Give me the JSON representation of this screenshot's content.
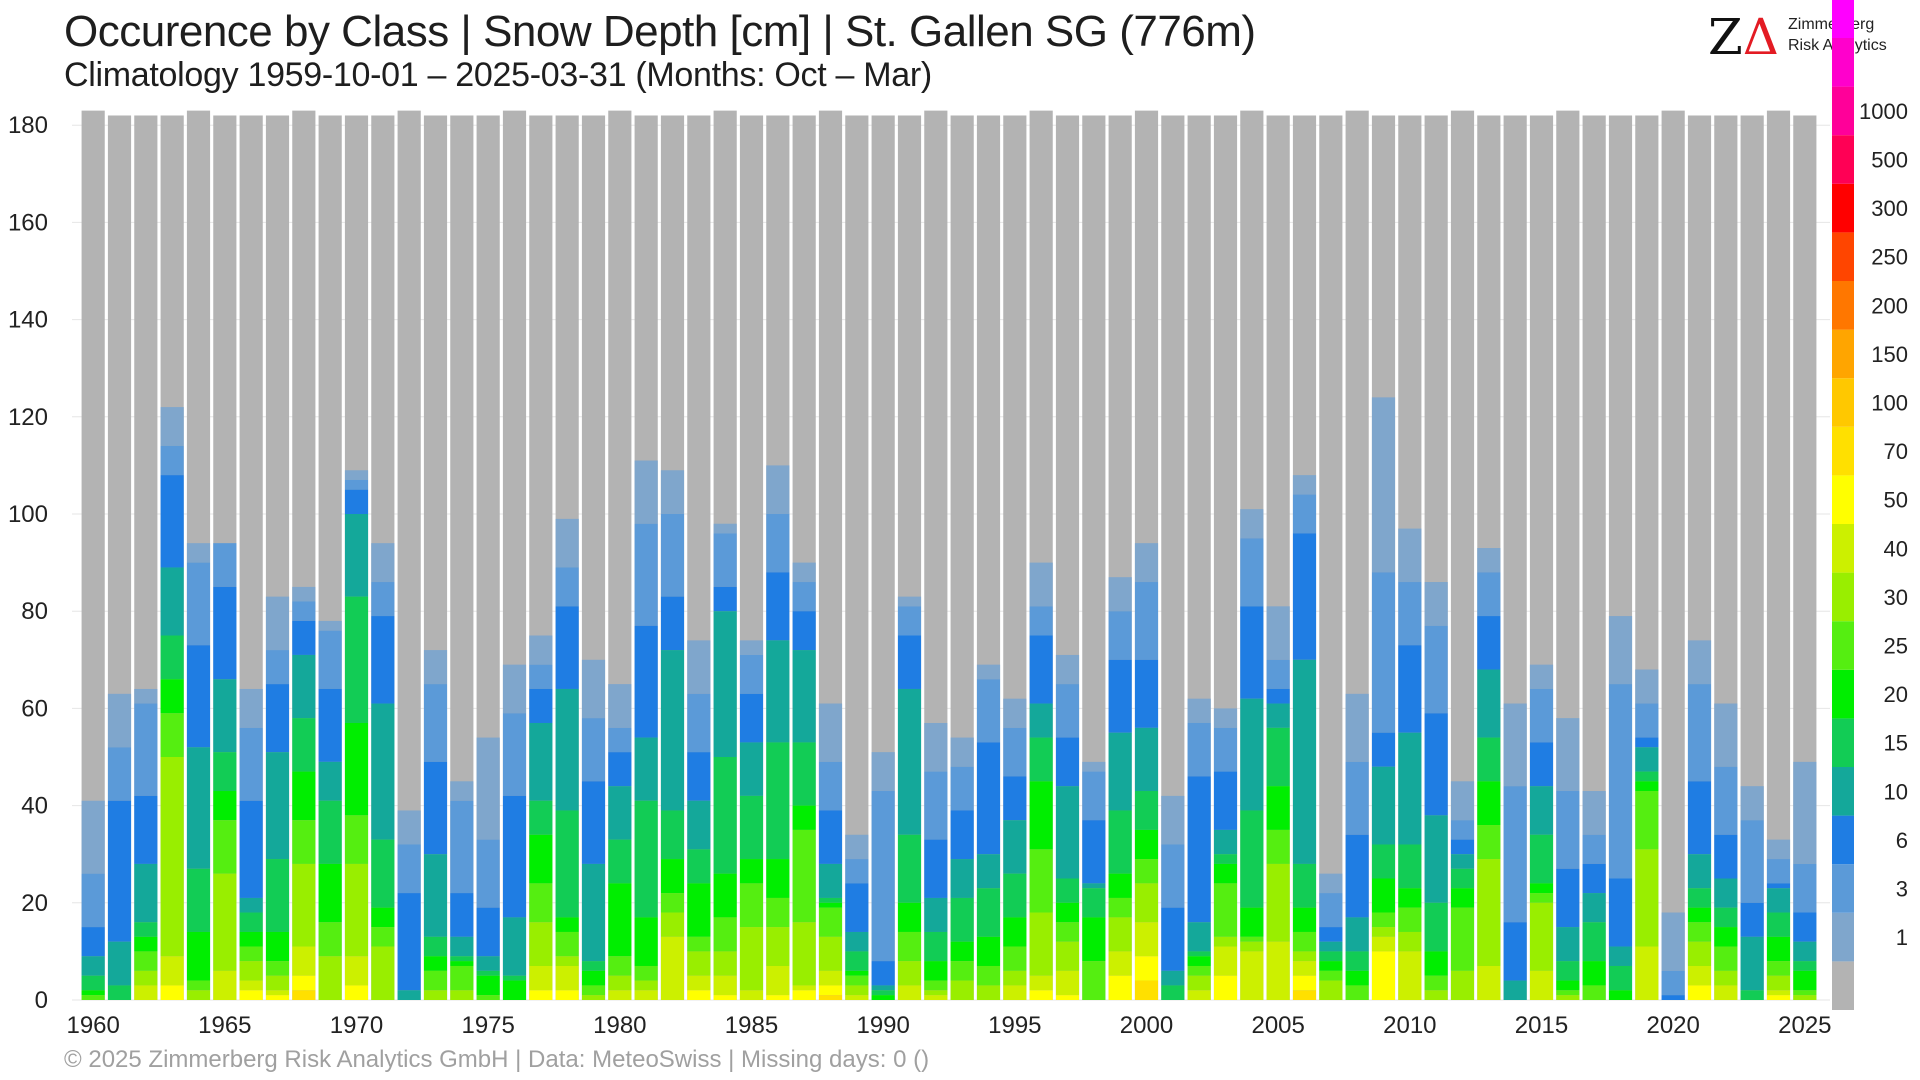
{
  "header": {
    "title": "Occurence by Class | Snow Depth [cm] | St. Gallen  SG (776m)",
    "subtitle": "Climatology 1959-10-01 – 2025-03-31 (Months: Oct – Mar)"
  },
  "logo": {
    "mark": "ZΔ",
    "name": "Zimmerberg",
    "sub": "Risk Analytics"
  },
  "footer": {
    "text": "©  2025 Zimmerberg Risk Analytics GmbH | Data: MeteoSwiss | Missing days: 0 ()"
  },
  "chart_data": {
    "type": "bar",
    "stacked": true,
    "x": [
      1960,
      1961,
      1962,
      1963,
      1964,
      1965,
      1966,
      1967,
      1968,
      1969,
      1970,
      1971,
      1972,
      1973,
      1974,
      1975,
      1976,
      1977,
      1978,
      1979,
      1980,
      1981,
      1982,
      1983,
      1984,
      1985,
      1986,
      1987,
      1988,
      1989,
      1990,
      1991,
      1992,
      1993,
      1994,
      1995,
      1996,
      1997,
      1998,
      1999,
      2000,
      2001,
      2002,
      2003,
      2004,
      2005,
      2006,
      2007,
      2008,
      2009,
      2010,
      2011,
      2012,
      2013,
      2014,
      2015,
      2016,
      2017,
      2018,
      2019,
      2020,
      2021,
      2022,
      2023,
      2024,
      2025
    ],
    "xticks": [
      1960,
      1965,
      1970,
      1975,
      1980,
      1985,
      1990,
      1995,
      2000,
      2005,
      2010,
      2015,
      2020,
      2025
    ],
    "ylim": [
      0,
      183
    ],
    "yticks": [
      0,
      20,
      40,
      60,
      80,
      100,
      120,
      140,
      160,
      180
    ],
    "grid": true,
    "season_days": [
      183,
      182,
      182,
      182,
      183,
      182,
      182,
      182,
      183,
      182,
      182,
      182,
      183,
      182,
      182,
      182,
      183,
      182,
      182,
      182,
      183,
      182,
      182,
      182,
      183,
      182,
      182,
      182,
      183,
      182,
      182,
      182,
      183,
      182,
      182,
      182,
      183,
      182,
      182,
      182,
      183,
      182,
      182,
      182,
      183,
      182,
      182,
      182,
      183,
      182,
      182,
      182,
      183,
      182,
      182,
      182,
      183,
      182,
      182,
      182,
      183,
      182,
      182,
      182,
      183,
      182
    ],
    "classes": [
      {
        "label": "1",
        "color": "#7fa6cc"
      },
      {
        "label": "3",
        "color": "#5b9ad8"
      },
      {
        "label": "6",
        "color": "#1f7de3"
      },
      {
        "label": "10",
        "color": "#14a89a"
      },
      {
        "label": "15",
        "color": "#12cc55"
      },
      {
        "label": "20",
        "color": "#00ee00"
      },
      {
        "label": "25",
        "color": "#55ee11"
      },
      {
        "label": "30",
        "color": "#99ee00"
      },
      {
        "label": "40",
        "color": "#ccf000"
      },
      {
        "label": "50",
        "color": "#ffff00"
      },
      {
        "label": "70",
        "color": "#ffe000"
      },
      {
        "label": "100",
        "color": "#ffc800"
      },
      {
        "label": "150",
        "color": "#ffa500"
      },
      {
        "label": "200",
        "color": "#ff7700"
      },
      {
        "label": "250",
        "color": "#ff4500"
      },
      {
        "label": "300",
        "color": "#ff0000"
      },
      {
        "label": "500",
        "color": "#ff0055"
      },
      {
        "label": "1000",
        "color": "#ff0099"
      },
      {
        "label": "",
        "color": "#ff00cc"
      },
      {
        "label": "",
        "color": "#ff00ff"
      }
    ],
    "no_snow_color": "#b3b3b3",
    "legend_labels": [
      "1",
      "3",
      "6",
      "10",
      "15",
      "20",
      "25",
      "30",
      "40",
      "50",
      "70",
      "100",
      "150",
      "200",
      "250",
      "300",
      "500",
      "1000"
    ],
    "series_cumulative_top": [
      [
        41,
        26,
        15,
        9,
        5,
        2,
        1,
        0
      ],
      [
        63,
        52,
        41,
        12,
        3
      ],
      [
        64,
        61,
        42,
        28,
        16,
        13,
        10,
        6,
        3
      ],
      [
        122,
        114,
        108,
        89,
        75,
        66,
        59,
        50,
        9,
        3
      ],
      [
        94,
        90,
        73,
        52,
        27,
        14,
        4,
        2
      ],
      [
        94,
        94,
        85,
        66,
        51,
        43,
        37,
        26,
        6
      ],
      [
        64,
        56,
        41,
        21,
        18,
        14,
        11,
        8,
        4,
        2
      ],
      [
        83,
        72,
        65,
        51,
        29,
        14,
        8,
        5,
        2,
        1
      ],
      [
        85,
        82,
        78,
        71,
        58,
        47,
        37,
        28,
        11,
        5,
        2
      ],
      [
        78,
        76,
        64,
        49,
        41,
        28,
        16,
        9
      ],
      [
        109,
        107,
        105,
        100,
        83,
        57,
        38,
        28,
        9,
        3
      ],
      [
        94,
        86,
        79,
        61,
        33,
        19,
        15,
        11
      ],
      [
        39,
        32,
        22,
        2
      ],
      [
        72,
        65,
        49,
        30,
        13,
        9,
        6,
        2
      ],
      [
        45,
        41,
        22,
        13,
        9,
        8,
        7,
        2
      ],
      [
        54,
        33,
        19,
        9,
        6,
        5,
        1
      ],
      [
        69,
        59,
        42,
        17,
        5,
        4
      ],
      [
        75,
        69,
        64,
        57,
        41,
        34,
        24,
        16,
        7,
        2
      ],
      [
        99,
        89,
        81,
        64,
        39,
        17,
        14,
        9,
        7,
        2
      ],
      [
        70,
        58,
        45,
        28,
        8,
        6,
        3,
        1
      ],
      [
        65,
        56,
        51,
        44,
        33,
        24,
        9,
        5,
        2
      ],
      [
        111,
        98,
        77,
        54,
        41,
        17,
        7,
        4,
        2
      ],
      [
        109,
        100,
        83,
        72,
        39,
        29,
        22,
        18,
        13
      ],
      [
        74,
        63,
        51,
        41,
        31,
        24,
        13,
        10,
        5,
        2
      ],
      [
        98,
        96,
        85,
        80,
        50,
        26,
        17,
        10,
        5,
        1
      ],
      [
        74,
        71,
        63,
        53,
        42,
        29,
        24,
        15,
        2
      ],
      [
        110,
        100,
        88,
        74,
        53,
        29,
        21,
        15,
        7,
        1
      ],
      [
        90,
        86,
        80,
        72,
        53,
        40,
        35,
        16,
        3,
        2
      ],
      [
        61,
        49,
        39,
        28,
        21,
        20,
        19,
        13,
        6,
        3,
        1
      ],
      [
        34,
        29,
        24,
        14,
        10,
        6,
        5,
        3,
        1
      ],
      [
        51,
        43,
        8,
        3,
        2,
        1
      ],
      [
        83,
        81,
        75,
        64,
        34,
        20,
        14,
        8,
        3
      ],
      [
        57,
        47,
        33,
        21,
        14,
        8,
        4,
        2,
        1
      ],
      [
        54,
        48,
        39,
        29,
        21,
        12,
        8,
        4
      ],
      [
        69,
        66,
        53,
        30,
        23,
        13,
        7,
        3
      ],
      [
        62,
        56,
        46,
        37,
        26,
        17,
        11,
        6,
        3
      ],
      [
        90,
        81,
        75,
        61,
        54,
        45,
        31,
        18,
        5,
        2
      ],
      [
        71,
        65,
        54,
        44,
        25,
        20,
        16,
        12,
        6,
        1
      ],
      [
        49,
        47,
        37,
        24,
        23,
        17,
        8
      ],
      [
        87,
        80,
        70,
        55,
        39,
        26,
        21,
        17,
        10,
        5
      ],
      [
        94,
        86,
        70,
        56,
        43,
        35,
        29,
        24,
        16,
        9,
        4
      ],
      [
        42,
        32,
        19,
        6,
        3
      ],
      [
        62,
        57,
        46,
        16,
        10,
        9,
        7,
        5,
        2
      ],
      [
        60,
        56,
        47,
        35,
        30,
        28,
        24,
        13,
        11,
        5
      ],
      [
        101,
        95,
        81,
        62,
        39,
        19,
        13,
        12,
        10
      ],
      [
        81,
        70,
        64,
        61,
        56,
        44,
        35,
        28,
        12
      ],
      [
        108,
        104,
        96,
        70,
        28,
        19,
        14,
        10,
        8,
        5,
        2
      ],
      [
        26,
        22,
        15,
        12,
        10,
        8,
        6,
        4
      ],
      [
        63,
        49,
        34,
        17,
        10,
        6,
        3
      ],
      [
        124,
        88,
        55,
        48,
        32,
        25,
        18,
        15,
        13,
        10
      ],
      [
        97,
        86,
        73,
        55,
        32,
        23,
        19,
        14,
        10
      ],
      [
        86,
        77,
        59,
        38,
        20,
        10,
        5,
        2
      ],
      [
        45,
        37,
        33,
        30,
        27,
        23,
        19,
        6
      ],
      [
        93,
        88,
        79,
        68,
        54,
        45,
        36,
        29,
        7
      ],
      [
        61,
        44,
        16,
        4
      ],
      [
        69,
        64,
        53,
        44,
        34,
        24,
        22,
        20,
        6
      ],
      [
        58,
        43,
        27,
        15,
        8,
        4,
        2,
        1
      ],
      [
        43,
        34,
        28,
        22,
        16,
        8,
        3
      ],
      [
        79,
        65,
        25,
        11,
        7,
        2
      ],
      [
        68,
        61,
        54,
        52,
        47,
        45,
        43,
        31,
        11
      ],
      [
        18,
        6,
        1
      ],
      [
        74,
        65,
        45,
        30,
        23,
        19,
        16,
        12,
        7,
        3
      ],
      [
        61,
        48,
        34,
        25,
        19,
        15,
        11,
        6,
        3
      ],
      [
        44,
        37,
        20,
        13,
        2
      ],
      [
        33,
        29,
        24,
        23,
        18,
        13,
        8,
        5,
        2,
        1
      ],
      [
        49,
        28,
        18,
        12,
        8,
        6,
        2,
        1
      ]
    ]
  }
}
